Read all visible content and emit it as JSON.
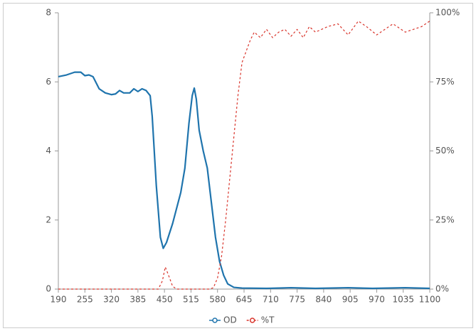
{
  "chart_data": {
    "type": "line",
    "xlim": [
      190,
      1100
    ],
    "xticks": [
      190,
      255,
      320,
      385,
      450,
      515,
      580,
      645,
      710,
      775,
      840,
      905,
      970,
      1035,
      1100
    ],
    "ylim": [
      0,
      8
    ],
    "yticks": [
      0,
      2,
      4,
      6,
      8
    ],
    "y2lim": [
      0,
      100
    ],
    "y2ticks": [
      {
        "value": 0,
        "label": "0%"
      },
      {
        "value": 25,
        "label": "25%"
      },
      {
        "value": 50,
        "label": "50%"
      },
      {
        "value": 75,
        "label": "75%"
      },
      {
        "value": 100,
        "label": "100%"
      }
    ],
    "legend": "bottom",
    "series": [
      {
        "name": "OD",
        "color": "#1f74ad",
        "dashed": false,
        "x": [
          190,
          210,
          230,
          245,
          255,
          265,
          275,
          290,
          305,
          320,
          330,
          340,
          350,
          365,
          375,
          385,
          395,
          405,
          415,
          420,
          430,
          440,
          447,
          455,
          470,
          490,
          500,
          510,
          518,
          523,
          528,
          535,
          545,
          555,
          565,
          575,
          585,
          595,
          605,
          620,
          640,
          700,
          760,
          820,
          900,
          960,
          1040,
          1100
        ],
        "values": [
          6.15,
          6.2,
          6.28,
          6.28,
          6.18,
          6.2,
          6.15,
          5.8,
          5.68,
          5.63,
          5.65,
          5.75,
          5.68,
          5.68,
          5.8,
          5.72,
          5.8,
          5.75,
          5.6,
          5.0,
          3.0,
          1.5,
          1.18,
          1.35,
          1.9,
          2.8,
          3.5,
          4.8,
          5.6,
          5.82,
          5.5,
          4.6,
          4.0,
          3.5,
          2.5,
          1.5,
          0.8,
          0.4,
          0.15,
          0.05,
          0.03,
          0.02,
          0.04,
          0.02,
          0.04,
          0.02,
          0.04,
          0.02
        ]
      },
      {
        "name": "%T",
        "color": "#d9342b",
        "dashed": true,
        "axis": "y2",
        "x": [
          190,
          435,
          445,
          452,
          460,
          470,
          480,
          560,
          570,
          580,
          590,
          600,
          610,
          620,
          630,
          640,
          650,
          660,
          670,
          685,
          700,
          715,
          730,
          745,
          760,
          775,
          790,
          805,
          820,
          835,
          850,
          875,
          900,
          925,
          945,
          970,
          990,
          1010,
          1040,
          1060,
          1080,
          1100
        ],
        "values": [
          0,
          0,
          3,
          8,
          5,
          1,
          0,
          0,
          0.5,
          4,
          12,
          25,
          40,
          55,
          70,
          82,
          86,
          90,
          93,
          91,
          94,
          91,
          93,
          94,
          91.5,
          94,
          91,
          95,
          93,
          94,
          95,
          96,
          92,
          97,
          95,
          92,
          94,
          96,
          93,
          94,
          95,
          97
        ]
      }
    ]
  }
}
